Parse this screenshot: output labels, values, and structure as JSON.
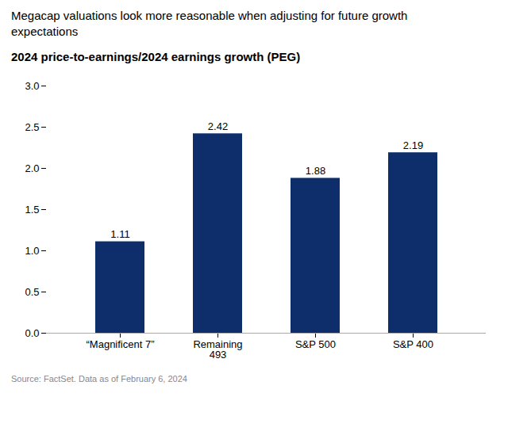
{
  "chart_data": {
    "type": "bar",
    "title": "2024 price-to-earnings/2024 earnings growth (PEG)",
    "subtitle": "Megacap valuations look more reasonable when adjusting for future growth\nexpectations",
    "caption": "Source: FactSet. Data as of February 6, 2024",
    "categories": [
      "“Magnificent 7”",
      "Remaining\n493",
      "S&P 500",
      "S&P 400"
    ],
    "values": [
      1.11,
      2.42,
      1.88,
      2.19
    ],
    "color": "#0d2d6b",
    "ylim": [
      0,
      3.0
    ],
    "yticks": [
      {
        "value": 0,
        "label": "0.0"
      },
      0.5,
      {
        "value": 1,
        "label": "1.0"
      },
      1.5,
      {
        "value": 2,
        "label": "2.0"
      },
      2.5,
      {
        "value": 3,
        "label": "3.0"
      }
    ],
    "grid": false,
    "data_labels": true
  }
}
